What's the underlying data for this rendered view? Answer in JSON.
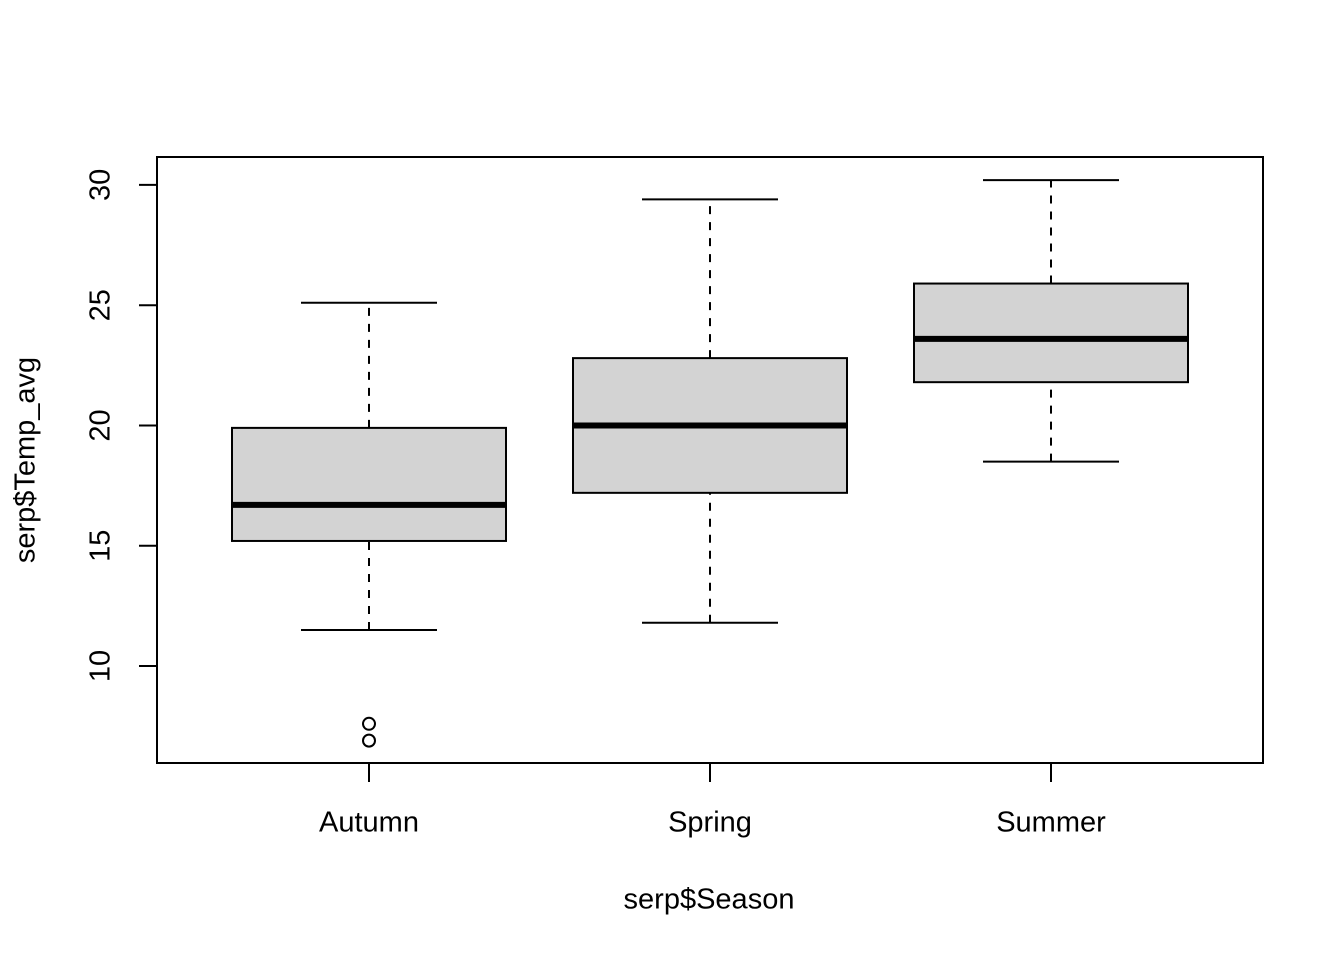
{
  "chart_data": {
    "type": "box",
    "x_label": "serp$Season",
    "y_label": "serp$Temp_avg",
    "categories": [
      "Autumn",
      "Spring",
      "Summer"
    ],
    "whisker_low": [
      11.5,
      11.8,
      18.5
    ],
    "q1": [
      15.2,
      17.2,
      21.8
    ],
    "median": [
      16.7,
      20.0,
      23.6
    ],
    "q3": [
      19.9,
      22.8,
      25.9
    ],
    "whisker_high": [
      25.1,
      29.4,
      30.2
    ],
    "outliers": [
      [
        7.6,
        6.9
      ],
      [],
      []
    ],
    "color": "#d3d3d3",
    "ylim": [
      5.97,
      31.16
    ],
    "yticks": [
      10,
      15,
      20,
      25,
      30
    ]
  }
}
